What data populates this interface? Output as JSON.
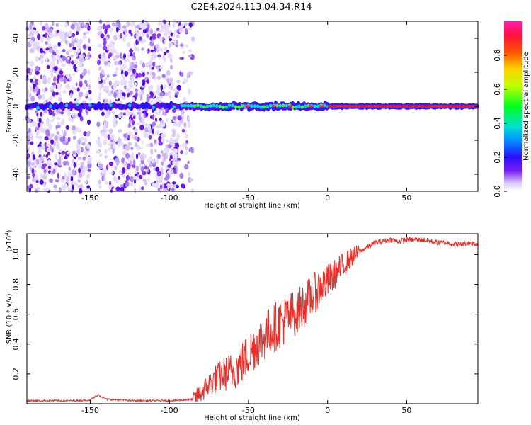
{
  "title": "C2E4.2024.113.04.34.R14",
  "chart_data": [
    {
      "type": "heatmap",
      "xlabel": "Height of straight line (km)",
      "ylabel": "Frequency (Hz)",
      "xlim": [
        -190,
        95
      ],
      "ylim": [
        -50,
        50
      ],
      "xticks": [
        -150,
        -100,
        -50,
        0,
        50
      ],
      "yticks": [
        -40,
        -20,
        0,
        20,
        40
      ],
      "colorbar": {
        "label": "Normalized spectral amplitude",
        "range": [
          0,
          1
        ],
        "ticks": [
          0.0,
          0.2,
          0.4,
          0.6,
          0.8
        ],
        "tick_labels": [
          "0.0",
          "0.2",
          "0.4",
          "0.6",
          "0.8"
        ]
      },
      "features": {
        "noise_region_x": [
          -190,
          -85
        ],
        "noise_gap_x": [
          -150,
          -145
        ],
        "carrier_frequency_hz": 0,
        "carrier_peak_from_x": 0
      }
    },
    {
      "type": "line",
      "xlabel": "Height of straight line (km)",
      "ylabel": "SNR (10 * v/v)",
      "y_multiplier": "(x10^4)",
      "y_multiplier_base": "(x10",
      "y_multiplier_exp": "4",
      "y_multiplier_close": ")",
      "xlim": [
        -190,
        95
      ],
      "ylim": [
        0,
        1.14
      ],
      "xticks": [
        -150,
        -100,
        -50,
        0,
        50
      ],
      "yticks": [
        0.2,
        0.4,
        0.6,
        0.8,
        1.0
      ],
      "ytick_labels": [
        "0.2",
        "0.4",
        "0.6",
        "0.8",
        "1.0"
      ],
      "series": [
        {
          "color": "#e8302a",
          "x": [
            -190,
            -180,
            -170,
            -160,
            -150,
            -145,
            -140,
            -130,
            -120,
            -110,
            -100,
            -90,
            -85,
            -80,
            -75,
            -70,
            -65,
            -60,
            -55,
            -50,
            -45,
            -40,
            -35,
            -30,
            -25,
            -20,
            -15,
            -10,
            -5,
            0,
            5,
            10,
            15,
            20,
            25,
            30,
            35,
            40,
            45,
            50,
            55,
            60,
            65,
            70,
            75,
            80,
            85,
            90,
            95
          ],
          "y": [
            0.02,
            0.02,
            0.02,
            0.02,
            0.025,
            0.06,
            0.03,
            0.025,
            0.02,
            0.02,
            0.02,
            0.025,
            0.03,
            0.07,
            0.13,
            0.17,
            0.2,
            0.22,
            0.26,
            0.33,
            0.4,
            0.45,
            0.5,
            0.54,
            0.58,
            0.62,
            0.66,
            0.72,
            0.78,
            0.82,
            0.87,
            0.93,
            0.98,
            1.02,
            1.05,
            1.08,
            1.09,
            1.1,
            1.09,
            1.1,
            1.1,
            1.1,
            1.09,
            1.08,
            1.08,
            1.07,
            1.07,
            1.08,
            1.07
          ]
        }
      ]
    }
  ]
}
